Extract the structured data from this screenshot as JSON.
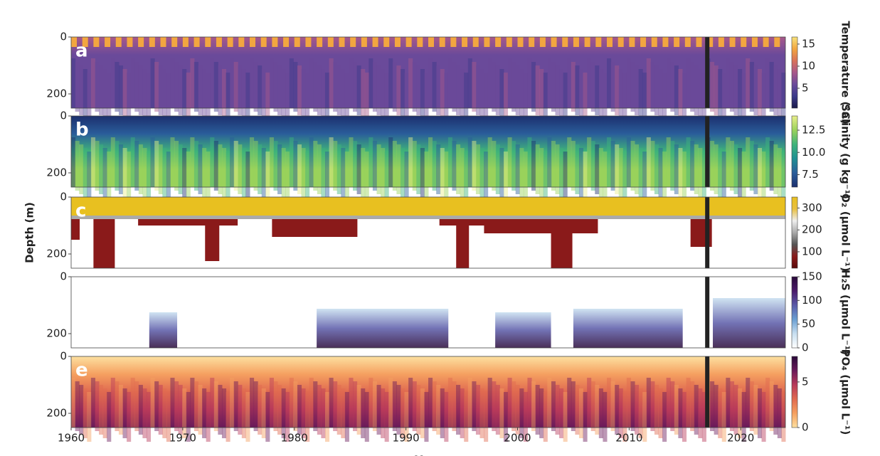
{
  "chart_data": [
    {
      "type": "heatmap",
      "label": "a",
      "colorbar_label": "Temperature (°C)",
      "xlim": [
        1960,
        2024
      ],
      "ylim": [
        0,
        250
      ],
      "yticks": [
        0,
        200
      ],
      "clim": [
        0.5,
        16.6
      ],
      "cticks": [
        5,
        10,
        15
      ],
      "colormap": [
        "#1a1a4a",
        "#3b3a8a",
        "#6a4a9a",
        "#a8588a",
        "#d9725a",
        "#f2a640",
        "#f8e27a"
      ],
      "event_x": 2017
    },
    {
      "type": "heatmap",
      "label": "b",
      "colorbar_label": "Salinity (g kg⁻¹)",
      "xlim": [
        1960,
        2024
      ],
      "ylim": [
        0,
        250
      ],
      "yticks": [
        0,
        200
      ],
      "clim": [
        6.1,
        14.1
      ],
      "cticks": [
        7.5,
        {
          "value": 10,
          "label": "10.0"
        },
        12.5
      ],
      "colormap": [
        "#1c2f6e",
        "#2a5d9a",
        "#1f8f93",
        "#3fb37a",
        "#9ad25c",
        "#e8ee8a"
      ],
      "event_x": 2017
    },
    {
      "type": "heatmap",
      "label": "c",
      "colorbar_label": "O₂ (µmol L⁻¹)",
      "ylabel": "Depth (m)",
      "xlim": [
        1960,
        2024
      ],
      "ylim": [
        0,
        250
      ],
      "yticks": [
        0,
        200
      ],
      "clim": [
        25,
        350
      ],
      "cticks": [
        100,
        200,
        300
      ],
      "colormap": [
        "#5a0a0a",
        "#8a1a1a",
        "#555555",
        "#aaaaaa",
        "#eeeeee",
        "#e8c040",
        "#e8c020"
      ],
      "event_x": 2017
    },
    {
      "type": "heatmap",
      "label": "d",
      "colorbar_label": "H₂S (µmol L⁻¹)",
      "xlim": [
        1960,
        2024
      ],
      "ylim": [
        0,
        250
      ],
      "yticks": [
        0,
        200
      ],
      "clim": [
        0,
        150
      ],
      "cticks": [
        0,
        50,
        100,
        150
      ],
      "colormap": [
        "#ffffff",
        "#c8dff0",
        "#6a9fd2",
        "#5a5aa8",
        "#4a1a6a",
        "#2a0a3a"
      ],
      "event_x": 2017
    },
    {
      "type": "heatmap",
      "label": "e",
      "colorbar_label": "PO₄ (µmol L⁻¹)",
      "xlabel": "Year",
      "xlim": [
        1960,
        2024
      ],
      "xticks": [
        1960,
        1970,
        1980,
        1990,
        2000,
        2010,
        2020
      ],
      "ylim": [
        0,
        250
      ],
      "yticks": [
        0,
        200
      ],
      "clim": [
        0,
        7.8
      ],
      "cticks": [
        0,
        5
      ],
      "colormap": [
        "#fde0a0",
        "#f5a060",
        "#e06a50",
        "#b83a5a",
        "#6a1a5a",
        "#2a0a3a"
      ],
      "event_x": 2017
    }
  ]
}
